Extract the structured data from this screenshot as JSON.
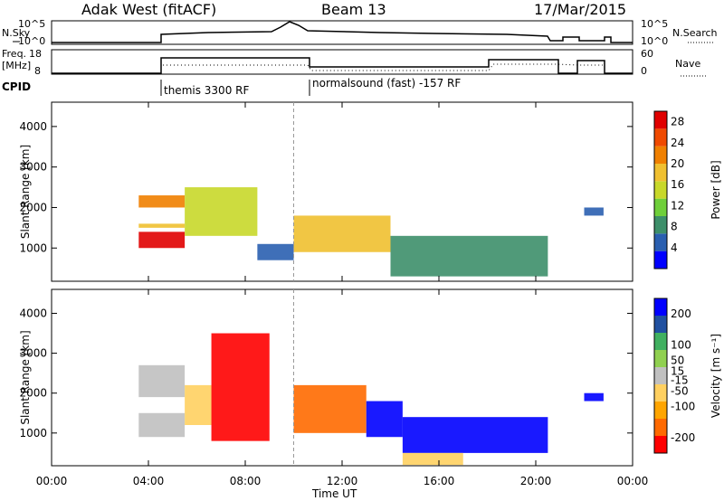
{
  "header": {
    "title": "Adak West (fitACF)",
    "beam": "Beam 13",
    "date": "17/Mar/2015"
  },
  "panels": {
    "nsky_label": "N.Sky",
    "nsearch_label": "N.Search",
    "nsky_ticks": [
      "10^5",
      "10^0"
    ],
    "freq_label_1": "Freq.",
    "freq_label_2": "[MHz]",
    "freq_ticks": [
      "18",
      "8"
    ],
    "nave_label": "Nave",
    "nave_ticks": [
      "60",
      "0"
    ],
    "cpid_label": "CPID",
    "cpid_segments": [
      "themis 3300 RF",
      "normalsound (fast) -157 RF"
    ]
  },
  "colors": {
    "power": [
      "#0000ff",
      "#2a5fb0",
      "#3d8f6a",
      "#6fcf3a",
      "#c8d82a",
      "#f0c030",
      "#f08000",
      "#f04a00",
      "#e00000"
    ],
    "velocity": [
      "#ff0000",
      "#ff6a00",
      "#ffa500",
      "#ffd060",
      "#c0c0c0",
      "#90d050",
      "#40b060",
      "#2050a0",
      "#0000ff"
    ]
  },
  "chart_data": [
    {
      "type": "heatmap",
      "name": "Power",
      "xlabel": "",
      "ylabel": "Slant Range [km]",
      "x_ticks": [
        "00:00",
        "04:00",
        "08:00",
        "12:00",
        "16:00",
        "20:00",
        "00:00"
      ],
      "xlim_hours": [
        0,
        24
      ],
      "y_ticks": [
        1000,
        2000,
        3000,
        4000
      ],
      "ylim": [
        180,
        4600
      ],
      "colorbar_label": "Power [dB]",
      "colorbar_ticks": [
        4,
        8,
        12,
        16,
        20,
        24,
        28
      ],
      "colorbar_range": [
        0,
        30
      ],
      "bands": [
        {
          "t0": 3.6,
          "t1": 5.5,
          "r0": 1000,
          "r1": 1400,
          "value": 29
        },
        {
          "t0": 3.6,
          "t1": 5.5,
          "r0": 2000,
          "r1": 2300,
          "value": 22
        },
        {
          "t0": 3.6,
          "t1": 5.5,
          "r0": 1500,
          "r1": 1600,
          "value": 18
        },
        {
          "t0": 5.5,
          "t1": 8.5,
          "r0": 1300,
          "r1": 2500,
          "value": 14
        },
        {
          "t0": 8.5,
          "t1": 10.0,
          "r0": 700,
          "r1": 1100,
          "value": 6
        },
        {
          "t0": 10.0,
          "t1": 14.0,
          "r0": 900,
          "r1": 1800,
          "value": 18
        },
        {
          "t0": 14.0,
          "t1": 20.5,
          "r0": 300,
          "r1": 1300,
          "value": 8
        },
        {
          "t0": 22.0,
          "t1": 22.8,
          "r0": 1800,
          "r1": 2000,
          "value": 6
        }
      ]
    },
    {
      "type": "heatmap",
      "name": "Velocity",
      "xlabel": "Time UT",
      "ylabel": "Slant Range [km]",
      "x_ticks": [
        "00:00",
        "04:00",
        "08:00",
        "12:00",
        "16:00",
        "20:00",
        "00:00"
      ],
      "xlim_hours": [
        0,
        24
      ],
      "y_ticks": [
        1000,
        2000,
        3000,
        4000
      ],
      "ylim": [
        180,
        4600
      ],
      "colorbar_label": "Velocity [m s⁻¹]",
      "colorbar_ticks": [
        200,
        100,
        50,
        15,
        -15,
        -50,
        -100,
        -200
      ],
      "colorbar_range": [
        -250,
        250
      ],
      "bands": [
        {
          "t0": 3.6,
          "t1": 5.5,
          "r0": 900,
          "r1": 1500,
          "value": 0
        },
        {
          "t0": 3.6,
          "t1": 5.5,
          "r0": 1900,
          "r1": 2700,
          "value": 0
        },
        {
          "t0": 5.5,
          "t1": 6.6,
          "r0": 1200,
          "r1": 2200,
          "value": -60
        },
        {
          "t0": 6.6,
          "t1": 9.0,
          "r0": 800,
          "r1": 3500,
          "value": -200
        },
        {
          "t0": 10.0,
          "t1": 13.0,
          "r0": 1000,
          "r1": 2200,
          "value": -180
        },
        {
          "t0": 13.0,
          "t1": 14.5,
          "r0": 900,
          "r1": 1800,
          "value": 220
        },
        {
          "t0": 14.5,
          "t1": 20.5,
          "r0": 500,
          "r1": 1400,
          "value": 220
        },
        {
          "t0": 14.5,
          "t1": 17.0,
          "r0": 200,
          "r1": 500,
          "value": -80
        },
        {
          "t0": 22.0,
          "t1": 22.8,
          "r0": 1800,
          "r1": 2000,
          "value": 220
        }
      ]
    }
  ]
}
